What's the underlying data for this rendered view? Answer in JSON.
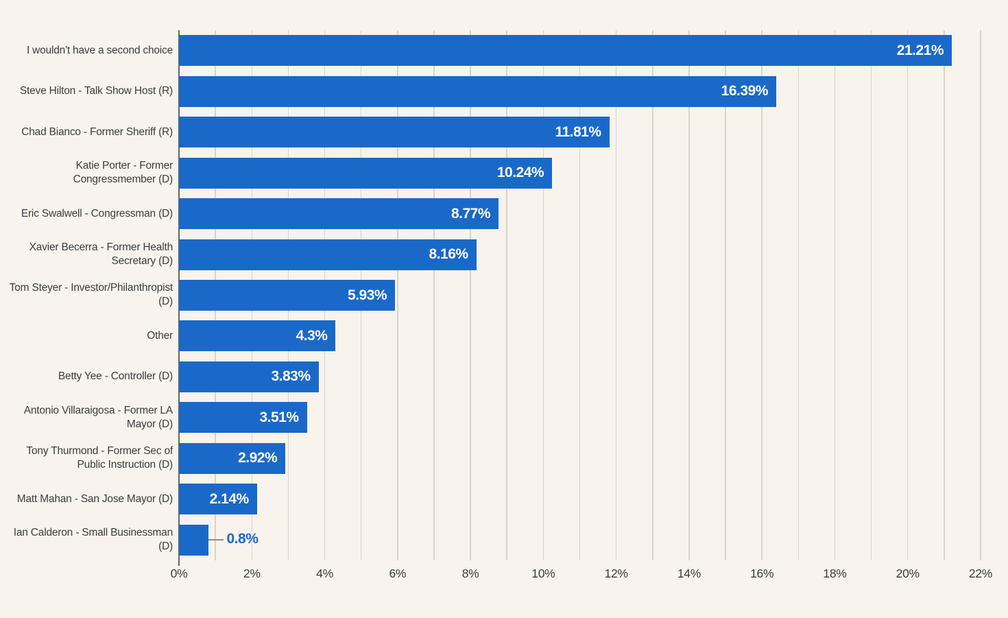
{
  "chart_data": {
    "type": "bar",
    "orientation": "horizontal",
    "title": "",
    "xlabel": "",
    "ylabel": "",
    "legend": "none",
    "grid": true,
    "grid_step_pct": 1,
    "xlim": [
      0,
      22
    ],
    "x_tick_labels": [
      "0%",
      "2%",
      "4%",
      "6%",
      "8%",
      "10%",
      "12%",
      "14%",
      "16%",
      "18%",
      "20%",
      "22%"
    ],
    "categories": [
      "I wouldn't have a second choice",
      "Steve Hilton - Talk Show Host (R)",
      "Chad Bianco - Former Sheriff (R)",
      "Katie Porter - Former Congressmember (D)",
      "Eric Swalwell - Congressman (D)",
      "Xavier Becerra - Former Health Secretary (D)",
      "Tom Steyer - Investor/Philanthropist (D)",
      "Other",
      "Betty Yee - Controller (D)",
      "Antonio Villaraigosa - Former LA Mayor (D)",
      "Tony Thurmond - Former Sec of Public Instruction (D)",
      "Matt Mahan - San Jose Mayor (D)",
      "Ian Calderon - Small Businessman (D)"
    ],
    "values": [
      21.21,
      16.39,
      11.81,
      10.24,
      8.77,
      8.16,
      5.93,
      4.3,
      3.83,
      3.51,
      2.92,
      2.14,
      0.8
    ],
    "value_labels": [
      "21.21%",
      "16.39%",
      "11.81%",
      "10.24%",
      "8.77%",
      "8.16%",
      "5.93%",
      "4.3%",
      "3.83%",
      "3.51%",
      "2.92%",
      "2.14%",
      "0.8%"
    ],
    "last_value_label_outside": true,
    "colors": {
      "bar": "#1a69c8",
      "background": "#f8f3ec",
      "gridline": "#d8d3cb",
      "zero_line": "#6b6660",
      "text": "#3d3d3d",
      "value_label_inside": "#ffffff",
      "value_label_outside": "#1a69c8",
      "leader_line": "#918c84"
    }
  }
}
